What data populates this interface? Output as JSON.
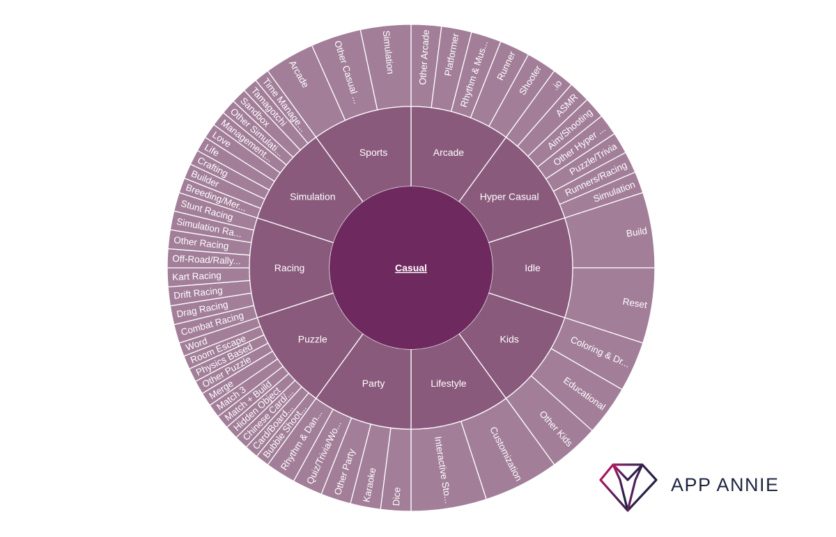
{
  "chart_data": {
    "type": "sunburst",
    "center": "Casual",
    "colors": {
      "center": "#6e2a5e",
      "ring_middle": "#8a5a7d",
      "ring_outer": "#a27e99",
      "stroke": "#ffffff"
    },
    "categories": [
      {
        "name": "Arcade",
        "weight": 1,
        "children": [
          {
            "name": "Other Arcade",
            "weight": 1
          },
          {
            "name": "Platformer",
            "weight": 1
          },
          {
            "name": "Rhythm & Mus...",
            "weight": 1
          },
          {
            "name": "Runner",
            "weight": 1
          },
          {
            "name": "Shooter",
            "weight": 1
          }
        ]
      },
      {
        "name": "Hyper Casual",
        "weight": 1,
        "children": [
          {
            "name": ".io",
            "weight": 1
          },
          {
            "name": "ASMR",
            "weight": 1
          },
          {
            "name": "Aim/Shooting",
            "weight": 1
          },
          {
            "name": "Other Hyper ...",
            "weight": 1
          },
          {
            "name": "Puzzle/Trivia",
            "weight": 1
          },
          {
            "name": "Runners/Racing",
            "weight": 1
          },
          {
            "name": "Simulation",
            "weight": 1
          }
        ]
      },
      {
        "name": "Idle",
        "weight": 1,
        "children": [
          {
            "name": "Build",
            "weight": 1
          },
          {
            "name": "Reset",
            "weight": 1
          }
        ]
      },
      {
        "name": "Kids",
        "weight": 1,
        "children": [
          {
            "name": "Coloring & Dr...",
            "weight": 1
          },
          {
            "name": "Educational",
            "weight": 1
          },
          {
            "name": "Other Kids",
            "weight": 1
          }
        ]
      },
      {
        "name": "Lifestyle",
        "weight": 1,
        "children": [
          {
            "name": "Customization",
            "weight": 1
          },
          {
            "name": "Interactive Sto...",
            "weight": 1
          }
        ]
      },
      {
        "name": "Party",
        "weight": 1,
        "children": [
          {
            "name": "Dice",
            "weight": 1
          },
          {
            "name": "Karaoke",
            "weight": 1
          },
          {
            "name": "Other Party",
            "weight": 1
          },
          {
            "name": "Quiz/Trivia/Wo...",
            "weight": 1
          },
          {
            "name": "Rhythm & Dan...",
            "weight": 1
          }
        ]
      },
      {
        "name": "Puzzle",
        "weight": 1,
        "children": [
          {
            "name": "Bubble Shoot...",
            "weight": 1
          },
          {
            "name": "Card/Board...",
            "weight": 1
          },
          {
            "name": "Chinese Card/...",
            "weight": 1
          },
          {
            "name": "Hidden Object",
            "weight": 1
          },
          {
            "name": "Match + Build",
            "weight": 1
          },
          {
            "name": "Match 3",
            "weight": 1
          },
          {
            "name": "Merge",
            "weight": 1
          },
          {
            "name": "Other Puzzle",
            "weight": 1
          },
          {
            "name": "Physics Based",
            "weight": 1
          },
          {
            "name": "Room Escape",
            "weight": 1
          },
          {
            "name": "Word",
            "weight": 1
          }
        ]
      },
      {
        "name": "Racing",
        "weight": 1,
        "children": [
          {
            "name": "Combat Racing",
            "weight": 1
          },
          {
            "name": "Drag Racing",
            "weight": 1
          },
          {
            "name": "Drift Racing",
            "weight": 1
          },
          {
            "name": "Kart Racing",
            "weight": 1
          },
          {
            "name": "Off-Road/Rally...",
            "weight": 1
          },
          {
            "name": "Other Racing",
            "weight": 1
          },
          {
            "name": "Simulation Ra...",
            "weight": 1
          },
          {
            "name": "Stunt Racing",
            "weight": 1
          }
        ]
      },
      {
        "name": "Simulation",
        "weight": 1,
        "children": [
          {
            "name": "Breeding/Mer...",
            "weight": 1
          },
          {
            "name": "Builder",
            "weight": 1
          },
          {
            "name": "Crafting",
            "weight": 1
          },
          {
            "name": "Life",
            "weight": 1
          },
          {
            "name": "Love",
            "weight": 1
          },
          {
            "name": "Management...",
            "weight": 1
          },
          {
            "name": "Other Simulati...",
            "weight": 1
          },
          {
            "name": "Sandbox",
            "weight": 1
          },
          {
            "name": "Tamagotchi",
            "weight": 1
          },
          {
            "name": "Time Manage...",
            "weight": 1
          }
        ]
      },
      {
        "name": "Sports",
        "weight": 1,
        "children": [
          {
            "name": "Arcade",
            "weight": 1
          },
          {
            "name": "Other Casual ...",
            "weight": 1
          },
          {
            "name": "Simulation",
            "weight": 1
          }
        ]
      }
    ]
  },
  "logo": {
    "text": "APP ANNIE",
    "icon": "diamond-logo-icon",
    "text_color": "#1d2440",
    "gradient_start": "#c4155d",
    "gradient_end": "#1d2440"
  }
}
